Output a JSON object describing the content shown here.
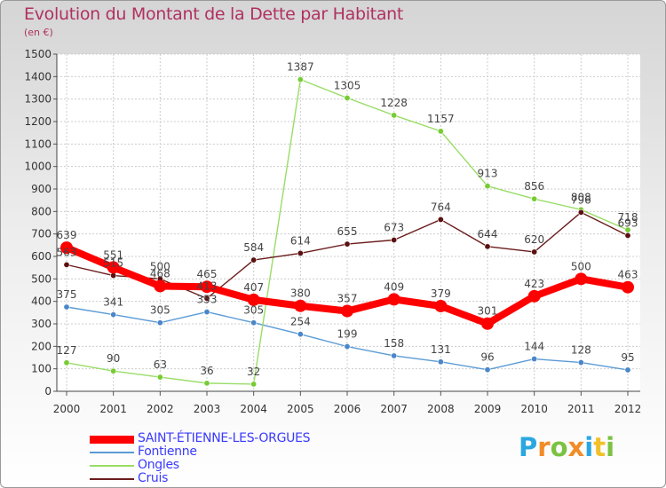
{
  "chart_data": {
    "type": "line",
    "title": "Evolution du Montant de la Dette par Habitant",
    "subtitle": "(en €)",
    "xlabel": "",
    "ylabel": "",
    "x": [
      "2000",
      "2001",
      "2002",
      "2003",
      "2004",
      "2005",
      "2006",
      "2007",
      "2008",
      "2009",
      "2010",
      "2011",
      "2012"
    ],
    "ylim": [
      0,
      1500
    ],
    "yticks": [
      0,
      100,
      200,
      300,
      400,
      500,
      600,
      700,
      800,
      900,
      1000,
      1100,
      1200,
      1300,
      1400,
      1500
    ],
    "grid": true,
    "legend_position": "bottom-left",
    "series": [
      {
        "name": "SAINT-ÉTIENNE-LES-ORGUES",
        "color": "#ff0000",
        "marker_color": "#ff0000",
        "values": [
          639,
          551,
          468,
          465,
          407,
          380,
          357,
          409,
          379,
          301,
          423,
          500,
          463
        ]
      },
      {
        "name": "Fontienne",
        "color": "#5b9bd5",
        "marker_color": "#4a86c8",
        "values": [
          375,
          341,
          305,
          353,
          305,
          254,
          199,
          158,
          131,
          96,
          144,
          128,
          95
        ]
      },
      {
        "name": "Ongles",
        "color": "#99dd66",
        "marker_color": "#77cc33",
        "values": [
          127,
          90,
          63,
          36,
          32,
          1387,
          1305,
          1228,
          1157,
          913,
          856,
          808,
          718
        ]
      },
      {
        "name": "Cruis",
        "color": "#6b1c1c",
        "marker_color": "#5a1010",
        "values": [
          563,
          515,
          500,
          413,
          584,
          614,
          655,
          673,
          764,
          644,
          620,
          796,
          693
        ]
      }
    ]
  },
  "brand": {
    "letters": [
      "P",
      "r",
      "o",
      "x",
      "i",
      "t",
      "i"
    ],
    "colors": [
      "#2aa7e0",
      "#f28c28",
      "#7cc242",
      "#f28c28",
      "#2aa7e0",
      "#f2c028",
      "#7cc242"
    ]
  }
}
